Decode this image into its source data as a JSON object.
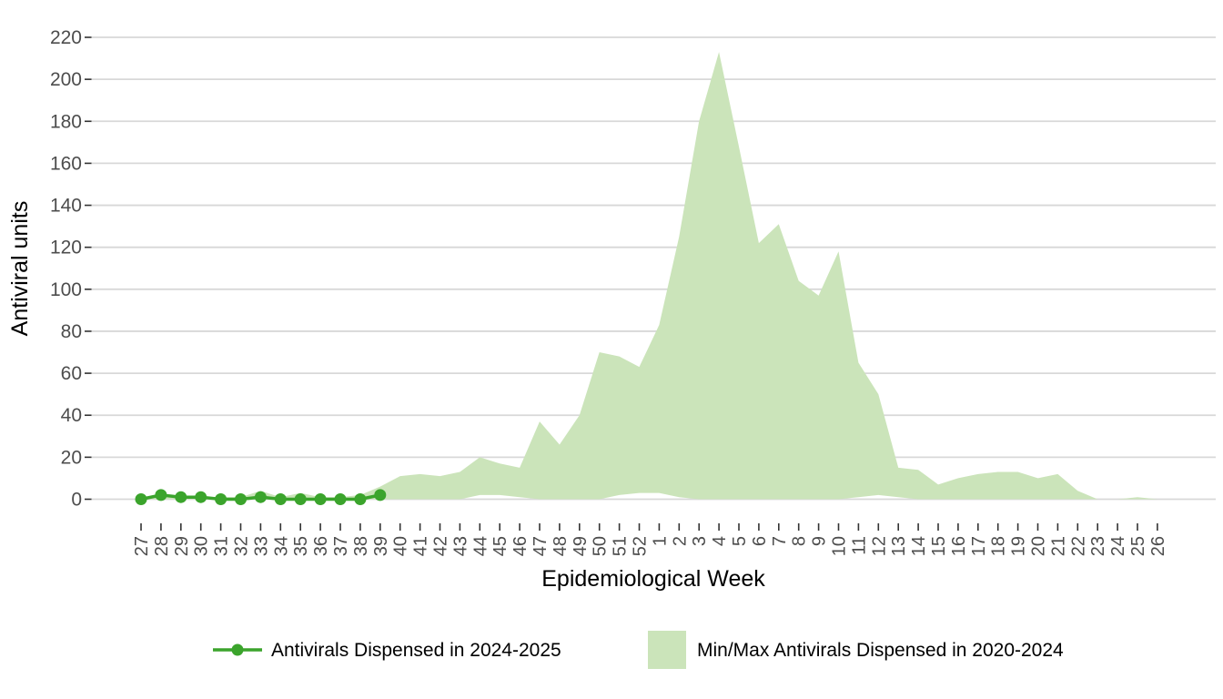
{
  "chart_data": {
    "type": "area+line",
    "xlabel": "Epidemiological Week",
    "ylabel": "Antiviral units",
    "x_tick_labels": [
      "27",
      "28",
      "29",
      "30",
      "31",
      "32",
      "33",
      "34",
      "35",
      "36",
      "37",
      "38",
      "39",
      "40",
      "41",
      "42",
      "43",
      "44",
      "45",
      "46",
      "47",
      "48",
      "49",
      "50",
      "51",
      "52",
      "1",
      "2",
      "3",
      "4",
      "5",
      "6",
      "7",
      "8",
      "9",
      "10",
      "11",
      "12",
      "13",
      "14",
      "15",
      "16",
      "17",
      "18",
      "19",
      "20",
      "21",
      "22",
      "23",
      "24",
      "25",
      "26"
    ],
    "y_ticks": [
      0,
      20,
      40,
      60,
      80,
      100,
      120,
      140,
      160,
      180,
      200,
      220
    ],
    "ylim": [
      0,
      220
    ],
    "grid": "horizontal-only",
    "legend_position": "bottom",
    "series": [
      {
        "name": "Antivirals Dispensed in 2024-2025",
        "type": "line+marker",
        "color": "#3BA42C",
        "weeks": [
          "27",
          "28",
          "29",
          "30",
          "31",
          "32",
          "33",
          "34",
          "35",
          "36",
          "37",
          "38",
          "39"
        ],
        "values": [
          0,
          2,
          1,
          1,
          0,
          0,
          1,
          0,
          0,
          0,
          0,
          0,
          2
        ]
      },
      {
        "name": "Min/Max Antivirals Dispensed in 2020-2024",
        "type": "band",
        "color": "#CBE4BA",
        "weeks": [
          "27",
          "28",
          "29",
          "30",
          "31",
          "32",
          "33",
          "34",
          "35",
          "36",
          "37",
          "38",
          "39",
          "40",
          "41",
          "42",
          "43",
          "44",
          "45",
          "46",
          "47",
          "48",
          "49",
          "50",
          "51",
          "52",
          "1",
          "2",
          "3",
          "4",
          "5",
          "6",
          "7",
          "8",
          "9",
          "10",
          "11",
          "12",
          "13",
          "14",
          "15",
          "16",
          "17",
          "18",
          "19",
          "20",
          "21",
          "22",
          "23",
          "24",
          "25",
          "26"
        ],
        "max": [
          1,
          1,
          1,
          1,
          1,
          1,
          4,
          1,
          3,
          1,
          1,
          2,
          6,
          11,
          12,
          11,
          13,
          20,
          17,
          15,
          37,
          26,
          40,
          70,
          68,
          63,
          83,
          125,
          180,
          213,
          168,
          122,
          131,
          104,
          97,
          118,
          65,
          50,
          15,
          14,
          7,
          10,
          12,
          13,
          13,
          10,
          12,
          4,
          0,
          0,
          1,
          0
        ],
        "min": [
          0,
          0,
          0,
          0,
          0,
          0,
          0,
          0,
          0,
          0,
          0,
          0,
          0,
          0,
          0,
          0,
          0,
          2,
          2,
          1,
          0,
          0,
          0,
          0,
          2,
          3,
          3,
          1,
          0,
          0,
          0,
          0,
          0,
          0,
          0,
          0,
          1,
          2,
          1,
          0,
          0,
          0,
          0,
          0,
          0,
          0,
          0,
          0,
          0,
          0,
          0,
          0
        ]
      }
    ]
  },
  "colors": {
    "background": "#FFFFFF",
    "gridline": "#D8D8D8",
    "tick_mark": "#333333",
    "tick_label": "#4D4D4D",
    "axis_title": "#000000",
    "line_series": "#3BA42C",
    "band_series": "#CBE4BA"
  }
}
